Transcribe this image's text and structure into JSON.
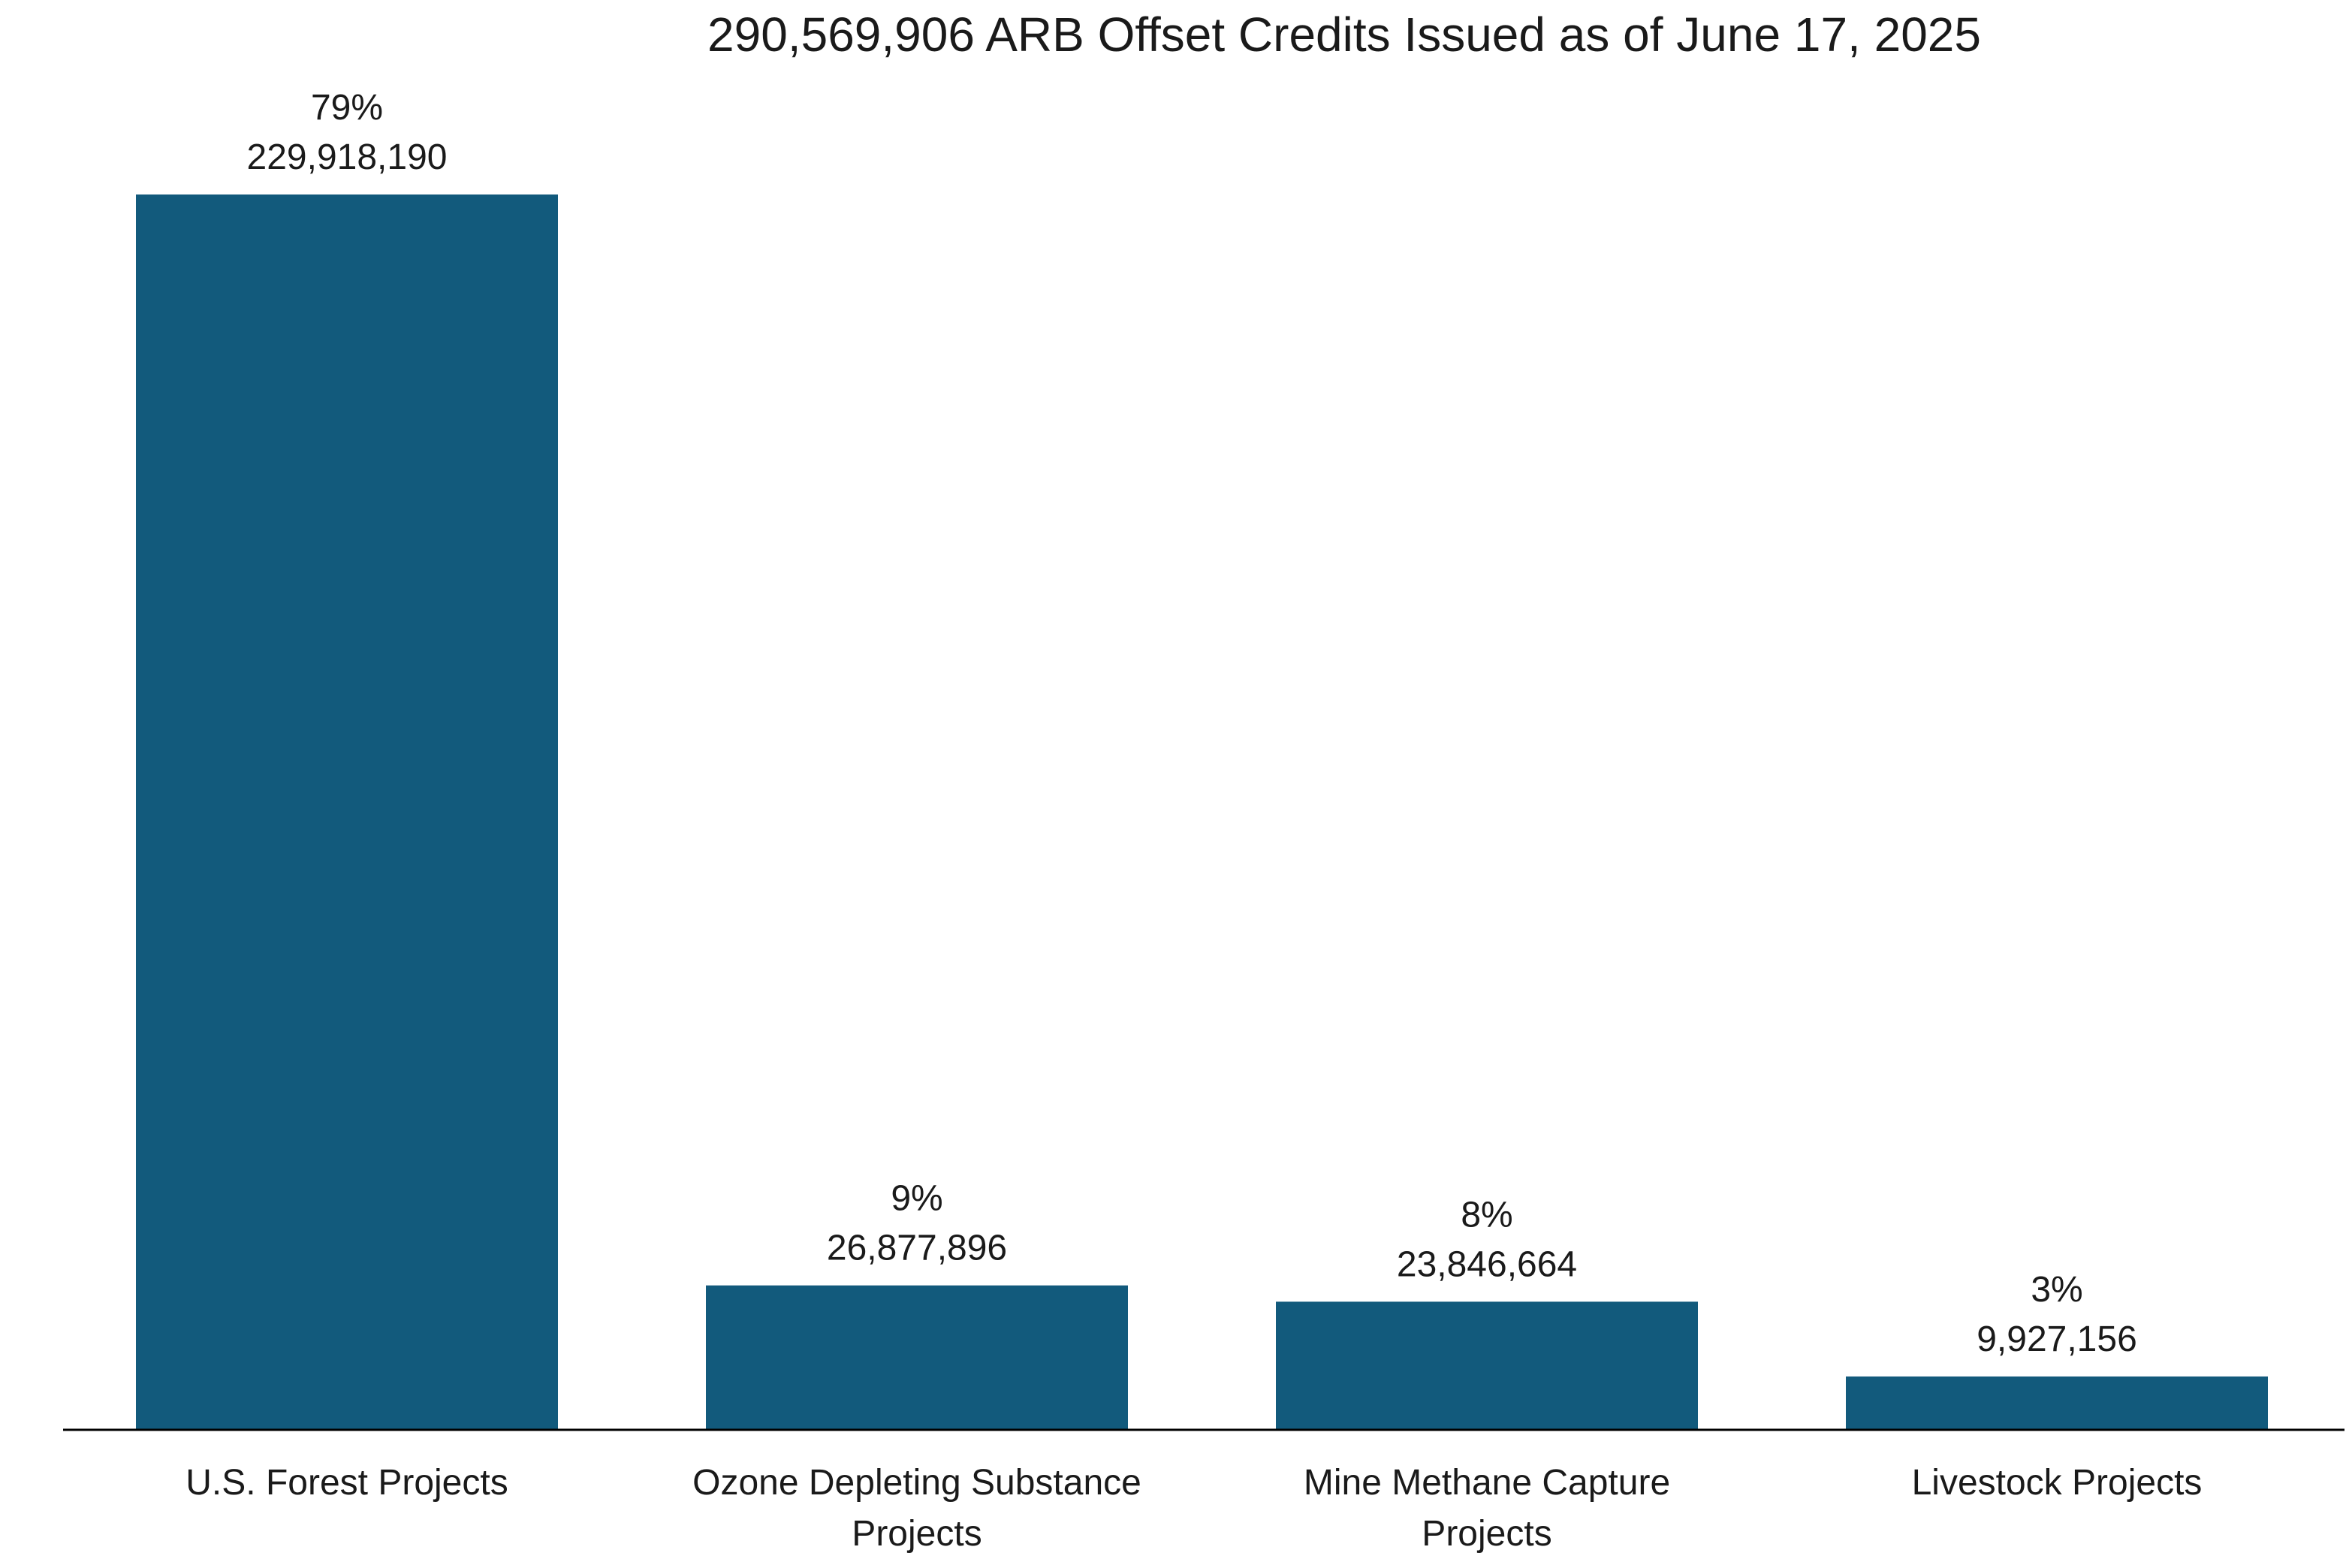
{
  "chart_data": {
    "type": "bar",
    "title": "290,569,906 ARB Offset Credits Issued as of June 17, 2025",
    "xlabel": "",
    "ylabel": "",
    "categories": [
      [
        "U.S. Forest Projects"
      ],
      [
        "Ozone Depleting Substance",
        "Projects"
      ],
      [
        "Mine Methane Capture",
        "Projects"
      ],
      [
        "Livestock Projects"
      ]
    ],
    "values": [
      229918190,
      26877896,
      23846664,
      9927156
    ],
    "value_labels": [
      "229,918,190",
      "26,877,896",
      "23,846,664",
      "9,927,156"
    ],
    "percent_labels": [
      "79%",
      "9%",
      "8%",
      "3%"
    ],
    "ylim": [
      0,
      229918190
    ],
    "grid": false,
    "legend": "none",
    "bar_color": "#125a7c",
    "axis_color": "#000000"
  }
}
